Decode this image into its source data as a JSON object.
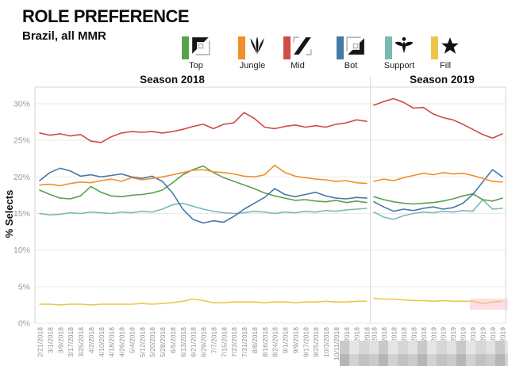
{
  "header": {
    "title": "ROLE PREFERENCE",
    "subtitle": "Brazil, all MMR"
  },
  "legend": {
    "items": [
      {
        "label": "Top",
        "color": "#59a14f",
        "icon": "top-lane-icon"
      },
      {
        "label": "Jungle",
        "color": "#f28e2b",
        "icon": "jungle-icon"
      },
      {
        "label": "Mid",
        "color": "#cf4b44",
        "icon": "mid-lane-icon"
      },
      {
        "label": "Bot",
        "color": "#4878a8",
        "icon": "bot-lane-icon"
      },
      {
        "label": "Support",
        "color": "#7cb9b4",
        "icon": "support-icon"
      },
      {
        "label": "Fill",
        "color": "#ecc64a",
        "icon": "fill-icon"
      }
    ]
  },
  "chart_data": {
    "type": "line",
    "title": "",
    "ylabel": "% Selects",
    "ylim": [
      0,
      32
    ],
    "grid": true,
    "legend_position": "top",
    "ytick_values": [
      0,
      5,
      10,
      15,
      20,
      25,
      30
    ],
    "ytick_labels": [
      "0%",
      "5%",
      "10%",
      "15%",
      "20%",
      "25%",
      "30%"
    ],
    "panels": [
      {
        "title": "Season 2018",
        "x_labels": [
          "2/21/2018",
          "3/1/2018",
          "3/9/2018",
          "3/17/2018",
          "3/25/2018",
          "4/2/2018",
          "4/10/2018",
          "4/18/2018",
          "4/26/2018",
          "5/4/2018",
          "5/12/2018",
          "5/20/2018",
          "5/28/2018",
          "6/5/2018",
          "6/13/2018",
          "6/21/2018",
          "6/29/2018",
          "7/7/2018",
          "7/15/2018",
          "7/23/2018",
          "7/31/2018",
          "8/8/2018",
          "8/16/2018",
          "8/24/2018",
          "9/1/2018",
          "9/9/2018",
          "9/17/2018",
          "9/25/2018",
          "10/3/2018",
          "10/11/2018",
          "10/19/2018",
          "10/27/2018",
          "2018"
        ],
        "series": [
          {
            "name": "Fill",
            "color": "#ecc64a",
            "values": [
              2.6,
              2.6,
              2.5,
              2.6,
              2.6,
              2.5,
              2.6,
              2.6,
              2.6,
              2.6,
              2.7,
              2.6,
              2.7,
              2.8,
              3.0,
              3.3,
              3.1,
              2.8,
              2.8,
              2.9,
              2.9,
              2.9,
              2.8,
              2.9,
              2.9,
              2.8,
              2.9,
              2.9,
              3.0,
              2.9,
              2.9,
              3.0,
              3.0
            ]
          },
          {
            "name": "Support",
            "color": "#7cb9b4",
            "values": [
              15.0,
              14.8,
              14.9,
              15.1,
              15.0,
              15.2,
              15.1,
              15.0,
              15.2,
              15.1,
              15.3,
              15.2,
              15.6,
              16.2,
              16.4,
              16.0,
              15.6,
              15.3,
              15.1,
              15.0,
              15.1,
              15.3,
              15.2,
              15.0,
              15.2,
              15.1,
              15.3,
              15.2,
              15.4,
              15.3,
              15.5,
              15.6,
              15.7
            ]
          },
          {
            "name": "Top",
            "color": "#59a14f",
            "values": [
              18.2,
              17.6,
              17.1,
              17.0,
              17.4,
              18.7,
              17.9,
              17.4,
              17.3,
              17.5,
              17.6,
              17.8,
              18.2,
              19.2,
              20.3,
              21.0,
              21.5,
              20.6,
              19.9,
              19.4,
              18.9,
              18.4,
              17.8,
              17.4,
              17.1,
              16.8,
              16.9,
              16.7,
              16.6,
              16.8,
              16.5,
              16.7,
              16.5
            ]
          },
          {
            "name": "Bot",
            "color": "#4878a8",
            "values": [
              19.5,
              20.6,
              21.2,
              20.8,
              20.1,
              20.3,
              20.0,
              20.2,
              20.4,
              20.0,
              19.8,
              20.1,
              19.4,
              17.8,
              15.6,
              14.2,
              13.7,
              14.0,
              13.8,
              14.6,
              15.6,
              16.4,
              17.2,
              18.4,
              17.6,
              17.3,
              17.6,
              17.9,
              17.4,
              17.1,
              17.0,
              17.2,
              17.1
            ]
          },
          {
            "name": "Jungle",
            "color": "#f28e2b",
            "values": [
              18.9,
              19.0,
              18.8,
              19.1,
              19.3,
              19.2,
              19.5,
              19.7,
              19.4,
              19.9,
              19.6,
              19.8,
              20.0,
              20.3,
              20.6,
              20.9,
              21.0,
              20.7,
              20.6,
              20.4,
              20.1,
              20.0,
              20.3,
              21.6,
              20.6,
              20.1,
              19.9,
              19.7,
              19.6,
              19.4,
              19.5,
              19.2,
              19.1
            ]
          },
          {
            "name": "Mid",
            "color": "#cf4b44",
            "values": [
              26.0,
              25.7,
              25.9,
              25.6,
              25.8,
              24.9,
              24.7,
              25.5,
              26.0,
              26.2,
              26.1,
              26.2,
              26.0,
              26.2,
              26.5,
              26.9,
              27.2,
              26.6,
              27.2,
              27.4,
              28.8,
              28.0,
              26.8,
              26.6,
              26.9,
              27.1,
              26.8,
              27.0,
              26.8,
              27.2,
              27.4,
              27.8,
              27.6
            ]
          }
        ]
      },
      {
        "title": "Season 2019",
        "x_labels": [
          "2018",
          "2018",
          "2018",
          "2018",
          "2018",
          "2018",
          "2019",
          "2019",
          "2019",
          "2019",
          "2019",
          "2019",
          "2019",
          "2019"
        ],
        "series": [
          {
            "name": "Fill",
            "color": "#ecc64a",
            "values": [
              3.4,
              3.3,
              3.3,
              3.2,
              3.1,
              3.1,
              3.0,
              3.1,
              3.0,
              3.0,
              3.0,
              2.7,
              2.9,
              3.0
            ]
          },
          {
            "name": "Support",
            "color": "#7cb9b4",
            "values": [
              15.2,
              14.5,
              14.2,
              14.7,
              15.0,
              15.2,
              15.1,
              15.3,
              15.2,
              15.4,
              15.3,
              16.9,
              15.6,
              15.7
            ]
          },
          {
            "name": "Top",
            "color": "#59a14f",
            "values": [
              17.3,
              16.9,
              16.6,
              16.4,
              16.3,
              16.4,
              16.5,
              16.7,
              17.0,
              17.4,
              17.7,
              16.9,
              16.7,
              17.1
            ]
          },
          {
            "name": "Bot",
            "color": "#4878a8",
            "values": [
              16.6,
              15.9,
              15.3,
              15.6,
              15.4,
              15.7,
              15.9,
              15.6,
              15.8,
              16.4,
              17.6,
              19.3,
              21.0,
              20.0
            ]
          },
          {
            "name": "Jungle",
            "color": "#f28e2b",
            "values": [
              19.4,
              19.7,
              19.5,
              19.9,
              20.2,
              20.5,
              20.3,
              20.6,
              20.4,
              20.5,
              20.2,
              19.8,
              19.4,
              19.3
            ]
          },
          {
            "name": "Mid",
            "color": "#cf4b44",
            "values": [
              29.8,
              30.3,
              30.7,
              30.2,
              29.4,
              29.5,
              28.6,
              28.1,
              27.8,
              27.2,
              26.5,
              25.8,
              25.3,
              25.9
            ]
          }
        ]
      }
    ]
  }
}
